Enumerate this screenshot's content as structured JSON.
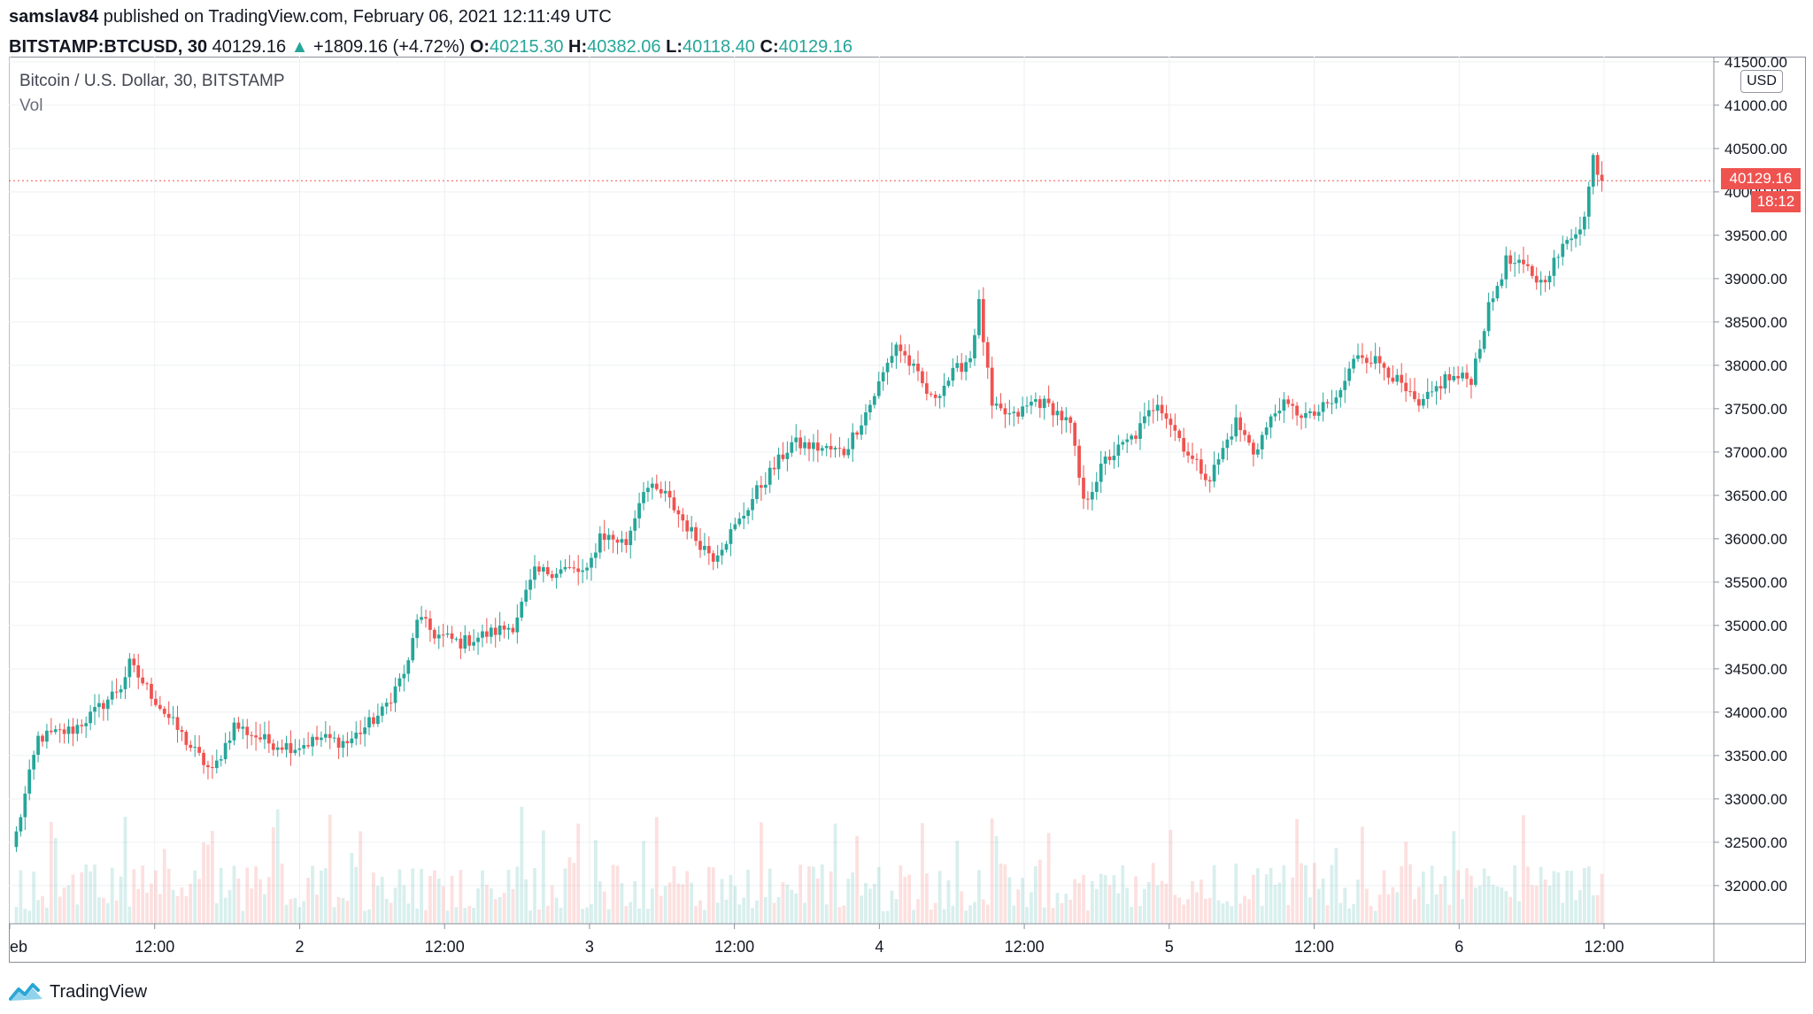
{
  "header": {
    "publisher_name": "samslav84",
    "publisher_text": "published on TradingView.com, February 06, 2021 12:11:49 UTC",
    "symbol": "BITSTAMP:BTCUSD, 30",
    "last_price": "40129.16",
    "change_arrow": "▲",
    "change": "+1809.16 (+4.72%)",
    "open_label": "O:",
    "open": "40215.30",
    "high_label": "H:",
    "high": "40382.06",
    "low_label": "L:",
    "low": "40118.40",
    "close_label": "C:",
    "close": "40129.16"
  },
  "legend": {
    "title": "Bitcoin / U.S. Dollar, 30, BITSTAMP",
    "volume": "Vol"
  },
  "currency": "USD",
  "last_price_tag": "40129.16",
  "countdown_tag": "18:12",
  "footer": {
    "brand": "TradingView",
    "logo_icon": "tradingview-logo-icon"
  },
  "colors": {
    "up": "#26a69a",
    "down": "#ef5350",
    "grid": "#eef0f3"
  },
  "chart_data": {
    "type": "candlestick",
    "interval_minutes": 30,
    "currency": "USD",
    "ylim": [
      31560,
      41560
    ],
    "y_ticks": [
      32000,
      32500,
      33000,
      33500,
      34000,
      34500,
      35000,
      35500,
      36000,
      36500,
      37000,
      37500,
      38000,
      38500,
      39000,
      39500,
      40000,
      40500,
      41000,
      41500
    ],
    "y_tick_labels": [
      "32000.00",
      "32500.00",
      "33000.00",
      "33500.00",
      "34000.00",
      "34500.00",
      "35000.00",
      "35500.00",
      "36000.00",
      "36500.00",
      "37000.00",
      "37500.00",
      "38000.00",
      "38500.00",
      "39000.00",
      "39500.00",
      "40000.00",
      "40500.00",
      "41000.00",
      "41500.00"
    ],
    "x_tick_labels": [
      "eb",
      "12:00",
      "2",
      "12:00",
      "3",
      "12:00",
      "4",
      "12:00",
      "5",
      "12:00",
      "6",
      "12:00"
    ],
    "last_price": 40129.16,
    "close_waypoints": [
      [
        0,
        32600
      ],
      [
        5,
        33700
      ],
      [
        13,
        33800
      ],
      [
        18,
        34000
      ],
      [
        24,
        34300
      ],
      [
        26,
        34550
      ],
      [
        34,
        34000
      ],
      [
        40,
        33600
      ],
      [
        45,
        33300
      ],
      [
        50,
        33850
      ],
      [
        58,
        33650
      ],
      [
        64,
        33600
      ],
      [
        70,
        33700
      ],
      [
        76,
        33650
      ],
      [
        84,
        34000
      ],
      [
        90,
        34550
      ],
      [
        92,
        35100
      ],
      [
        96,
        34900
      ],
      [
        102,
        34800
      ],
      [
        108,
        34900
      ],
      [
        114,
        35000
      ],
      [
        119,
        35600
      ],
      [
        126,
        35650
      ],
      [
        131,
        35600
      ],
      [
        134,
        36050
      ],
      [
        140,
        35950
      ],
      [
        144,
        36600
      ],
      [
        149,
        36500
      ],
      [
        156,
        36000
      ],
      [
        160,
        35800
      ],
      [
        166,
        36200
      ],
      [
        170,
        36550
      ],
      [
        178,
        37100
      ],
      [
        184,
        37050
      ],
      [
        190,
        37000
      ],
      [
        196,
        37550
      ],
      [
        202,
        38250
      ],
      [
        206,
        37950
      ],
      [
        210,
        37600
      ],
      [
        215,
        37900
      ],
      [
        219,
        38100
      ],
      [
        221,
        38700
      ],
      [
        224,
        37500
      ],
      [
        229,
        37400
      ],
      [
        234,
        37600
      ],
      [
        238,
        37500
      ],
      [
        242,
        37300
      ],
      [
        245,
        36400
      ],
      [
        250,
        36900
      ],
      [
        257,
        37200
      ],
      [
        262,
        37600
      ],
      [
        266,
        37250
      ],
      [
        270,
        36900
      ],
      [
        274,
        36700
      ],
      [
        280,
        37350
      ],
      [
        284,
        37000
      ],
      [
        290,
        37550
      ],
      [
        297,
        37400
      ],
      [
        303,
        37600
      ],
      [
        308,
        38150
      ],
      [
        314,
        38000
      ],
      [
        318,
        37750
      ],
      [
        322,
        37500
      ],
      [
        328,
        37850
      ],
      [
        334,
        37850
      ],
      [
        338,
        38650
      ],
      [
        342,
        39200
      ],
      [
        347,
        39100
      ],
      [
        350,
        38950
      ],
      [
        357,
        39500
      ],
      [
        360,
        39700
      ],
      [
        362,
        40400
      ],
      [
        364,
        40129.16
      ]
    ],
    "volume_note": "volume pane without printed values"
  }
}
